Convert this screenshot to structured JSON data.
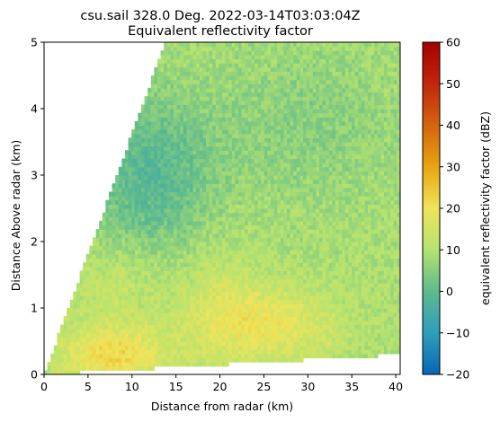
{
  "chart_data": {
    "type": "heatmap",
    "title": "csu.sail 328.0 Deg. 2022-03-14T03:03:04Z",
    "subtitle": "Equivalent reflectivity factor",
    "xlabel": "Distance from radar (km)",
    "ylabel": "Distance Above radar  (km)",
    "xlim": [
      0,
      40.5
    ],
    "ylim": [
      0,
      5
    ],
    "x_ticks": [
      "0",
      "5",
      "10",
      "15",
      "20",
      "25",
      "30",
      "35",
      "40"
    ],
    "y_ticks": [
      "0",
      "1",
      "2",
      "3",
      "4",
      "5"
    ],
    "colorbar": {
      "label": "equivalent reflectivity factor (dBZ)",
      "range": [
        -20,
        60
      ],
      "ticks": [
        "60",
        "50",
        "40",
        "30",
        "20",
        "10",
        "0",
        "−10",
        "−20"
      ]
    },
    "grid": false,
    "legend": "none",
    "features": [
      {
        "description": "higher reflectivity near surface",
        "x_range": [
          1,
          14
        ],
        "y_range": [
          0,
          0.6
        ],
        "approx_dbz": 22
      },
      {
        "description": "higher reflectivity band",
        "x_range": [
          19,
          33
        ],
        "y_range": [
          0.2,
          1.3
        ],
        "approx_dbz": 20
      },
      {
        "description": "lower reflectivity aloft",
        "x_range": [
          7,
          20
        ],
        "y_range": [
          2.2,
          4.5
        ],
        "approx_dbz": 0
      }
    ]
  }
}
